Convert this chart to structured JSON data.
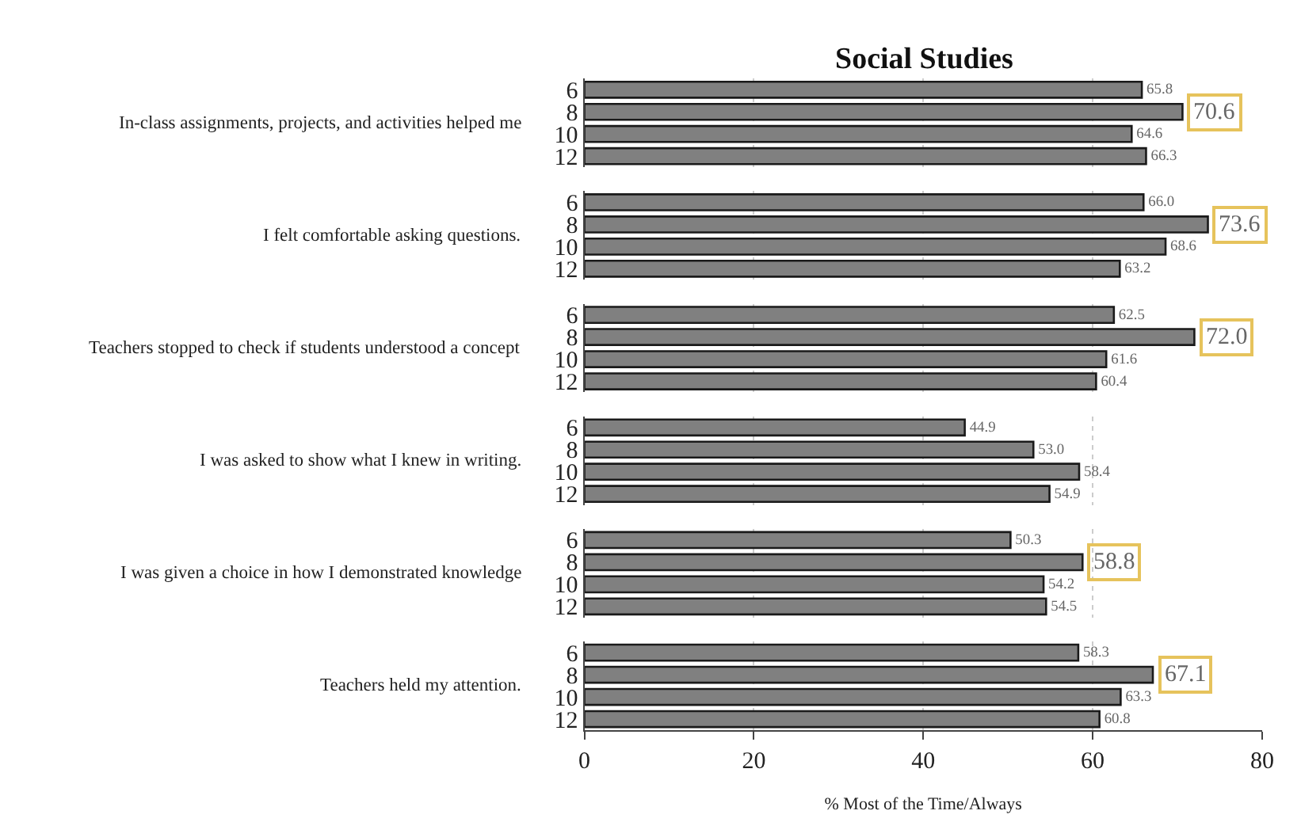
{
  "chart_data": [
    {
      "type": "bar",
      "orientation": "horizontal",
      "title": "Social Studies",
      "ylabel": "In-class assignments, projects, and activities helped me",
      "categories": [
        "6",
        "8",
        "10",
        "12"
      ],
      "values": [
        65.8,
        70.6,
        64.6,
        66.3
      ],
      "color": "#808080",
      "value_labels": [
        "65.8",
        null,
        "64.6",
        "66.3"
      ],
      "annotations": [
        {
          "text": "70.6",
          "x": 70.6,
          "y": "8"
        }
      ],
      "xlim": [
        0,
        80
      ],
      "xticks": [
        0,
        20,
        40,
        60,
        80
      ],
      "grid": "x",
      "tick_labels": "y"
    },
    {
      "type": "bar",
      "orientation": "horizontal",
      "ylabel": "I felt comfortable asking questions.",
      "categories": [
        "6",
        "8",
        "10",
        "12"
      ],
      "values": [
        66.0,
        73.6,
        68.6,
        63.2
      ],
      "color": "#808080",
      "value_labels": [
        "66.0",
        null,
        "68.6",
        "63.2"
      ],
      "annotations": [
        {
          "text": "73.6",
          "x": 73.6,
          "y": "8"
        }
      ],
      "xlim": [
        0,
        80
      ],
      "xticks": [
        0,
        20,
        40,
        60,
        80
      ],
      "grid": "x",
      "tick_labels": "y"
    },
    {
      "type": "bar",
      "orientation": "horizontal",
      "ylabel": "Teachers stopped to check if students understood a concept",
      "categories": [
        "6",
        "8",
        "10",
        "12"
      ],
      "values": [
        62.5,
        72.0,
        61.6,
        60.4
      ],
      "color": "#808080",
      "value_labels": [
        "62.5",
        null,
        "61.6",
        "60.4"
      ],
      "annotations": [
        {
          "text": "72.0",
          "x": 72.0,
          "y": "8"
        }
      ],
      "xlim": [
        0,
        80
      ],
      "xticks": [
        0,
        20,
        40,
        60,
        80
      ],
      "grid": "x",
      "tick_labels": "y"
    },
    {
      "type": "bar",
      "orientation": "horizontal",
      "ylabel": "I was asked to show what I knew in writing.",
      "categories": [
        "6",
        "8",
        "10",
        "12"
      ],
      "values": [
        44.9,
        53.0,
        58.4,
        54.9
      ],
      "color": "#808080",
      "value_labels": [
        "44.9",
        "53.0",
        "58.4",
        "54.9"
      ],
      "xlim": [
        0,
        80
      ],
      "xticks": [
        0,
        20,
        40,
        60,
        80
      ],
      "grid": "x",
      "tick_labels": "y"
    },
    {
      "type": "bar",
      "orientation": "horizontal",
      "ylabel": "I was given a choice in how I demonstrated knowledge",
      "categories": [
        "6",
        "8",
        "10",
        "12"
      ],
      "values": [
        50.3,
        58.8,
        54.2,
        54.5
      ],
      "color": "#808080",
      "value_labels": [
        "50.3",
        null,
        "54.2",
        "54.5"
      ],
      "annotations": [
        {
          "text": "58.8",
          "x": 58.8,
          "y": "8"
        }
      ],
      "xlim": [
        0,
        80
      ],
      "xticks": [
        0,
        20,
        40,
        60,
        80
      ],
      "grid": "x",
      "tick_labels": "y"
    },
    {
      "type": "bar",
      "orientation": "horizontal",
      "ylabel": "Teachers held my attention.",
      "xlabel": "% Most of the Time/Always",
      "categories": [
        "6",
        "8",
        "10",
        "12"
      ],
      "values": [
        58.3,
        67.1,
        63.3,
        60.8
      ],
      "color": "#808080",
      "value_labels": [
        "58.3",
        null,
        "63.3",
        "60.8"
      ],
      "annotations": [
        {
          "text": "67.1",
          "x": 67.1,
          "y": "8"
        }
      ],
      "xlim": [
        0,
        80
      ],
      "xticks": [
        0,
        20,
        40,
        60,
        80
      ],
      "grid": "x"
    }
  ]
}
